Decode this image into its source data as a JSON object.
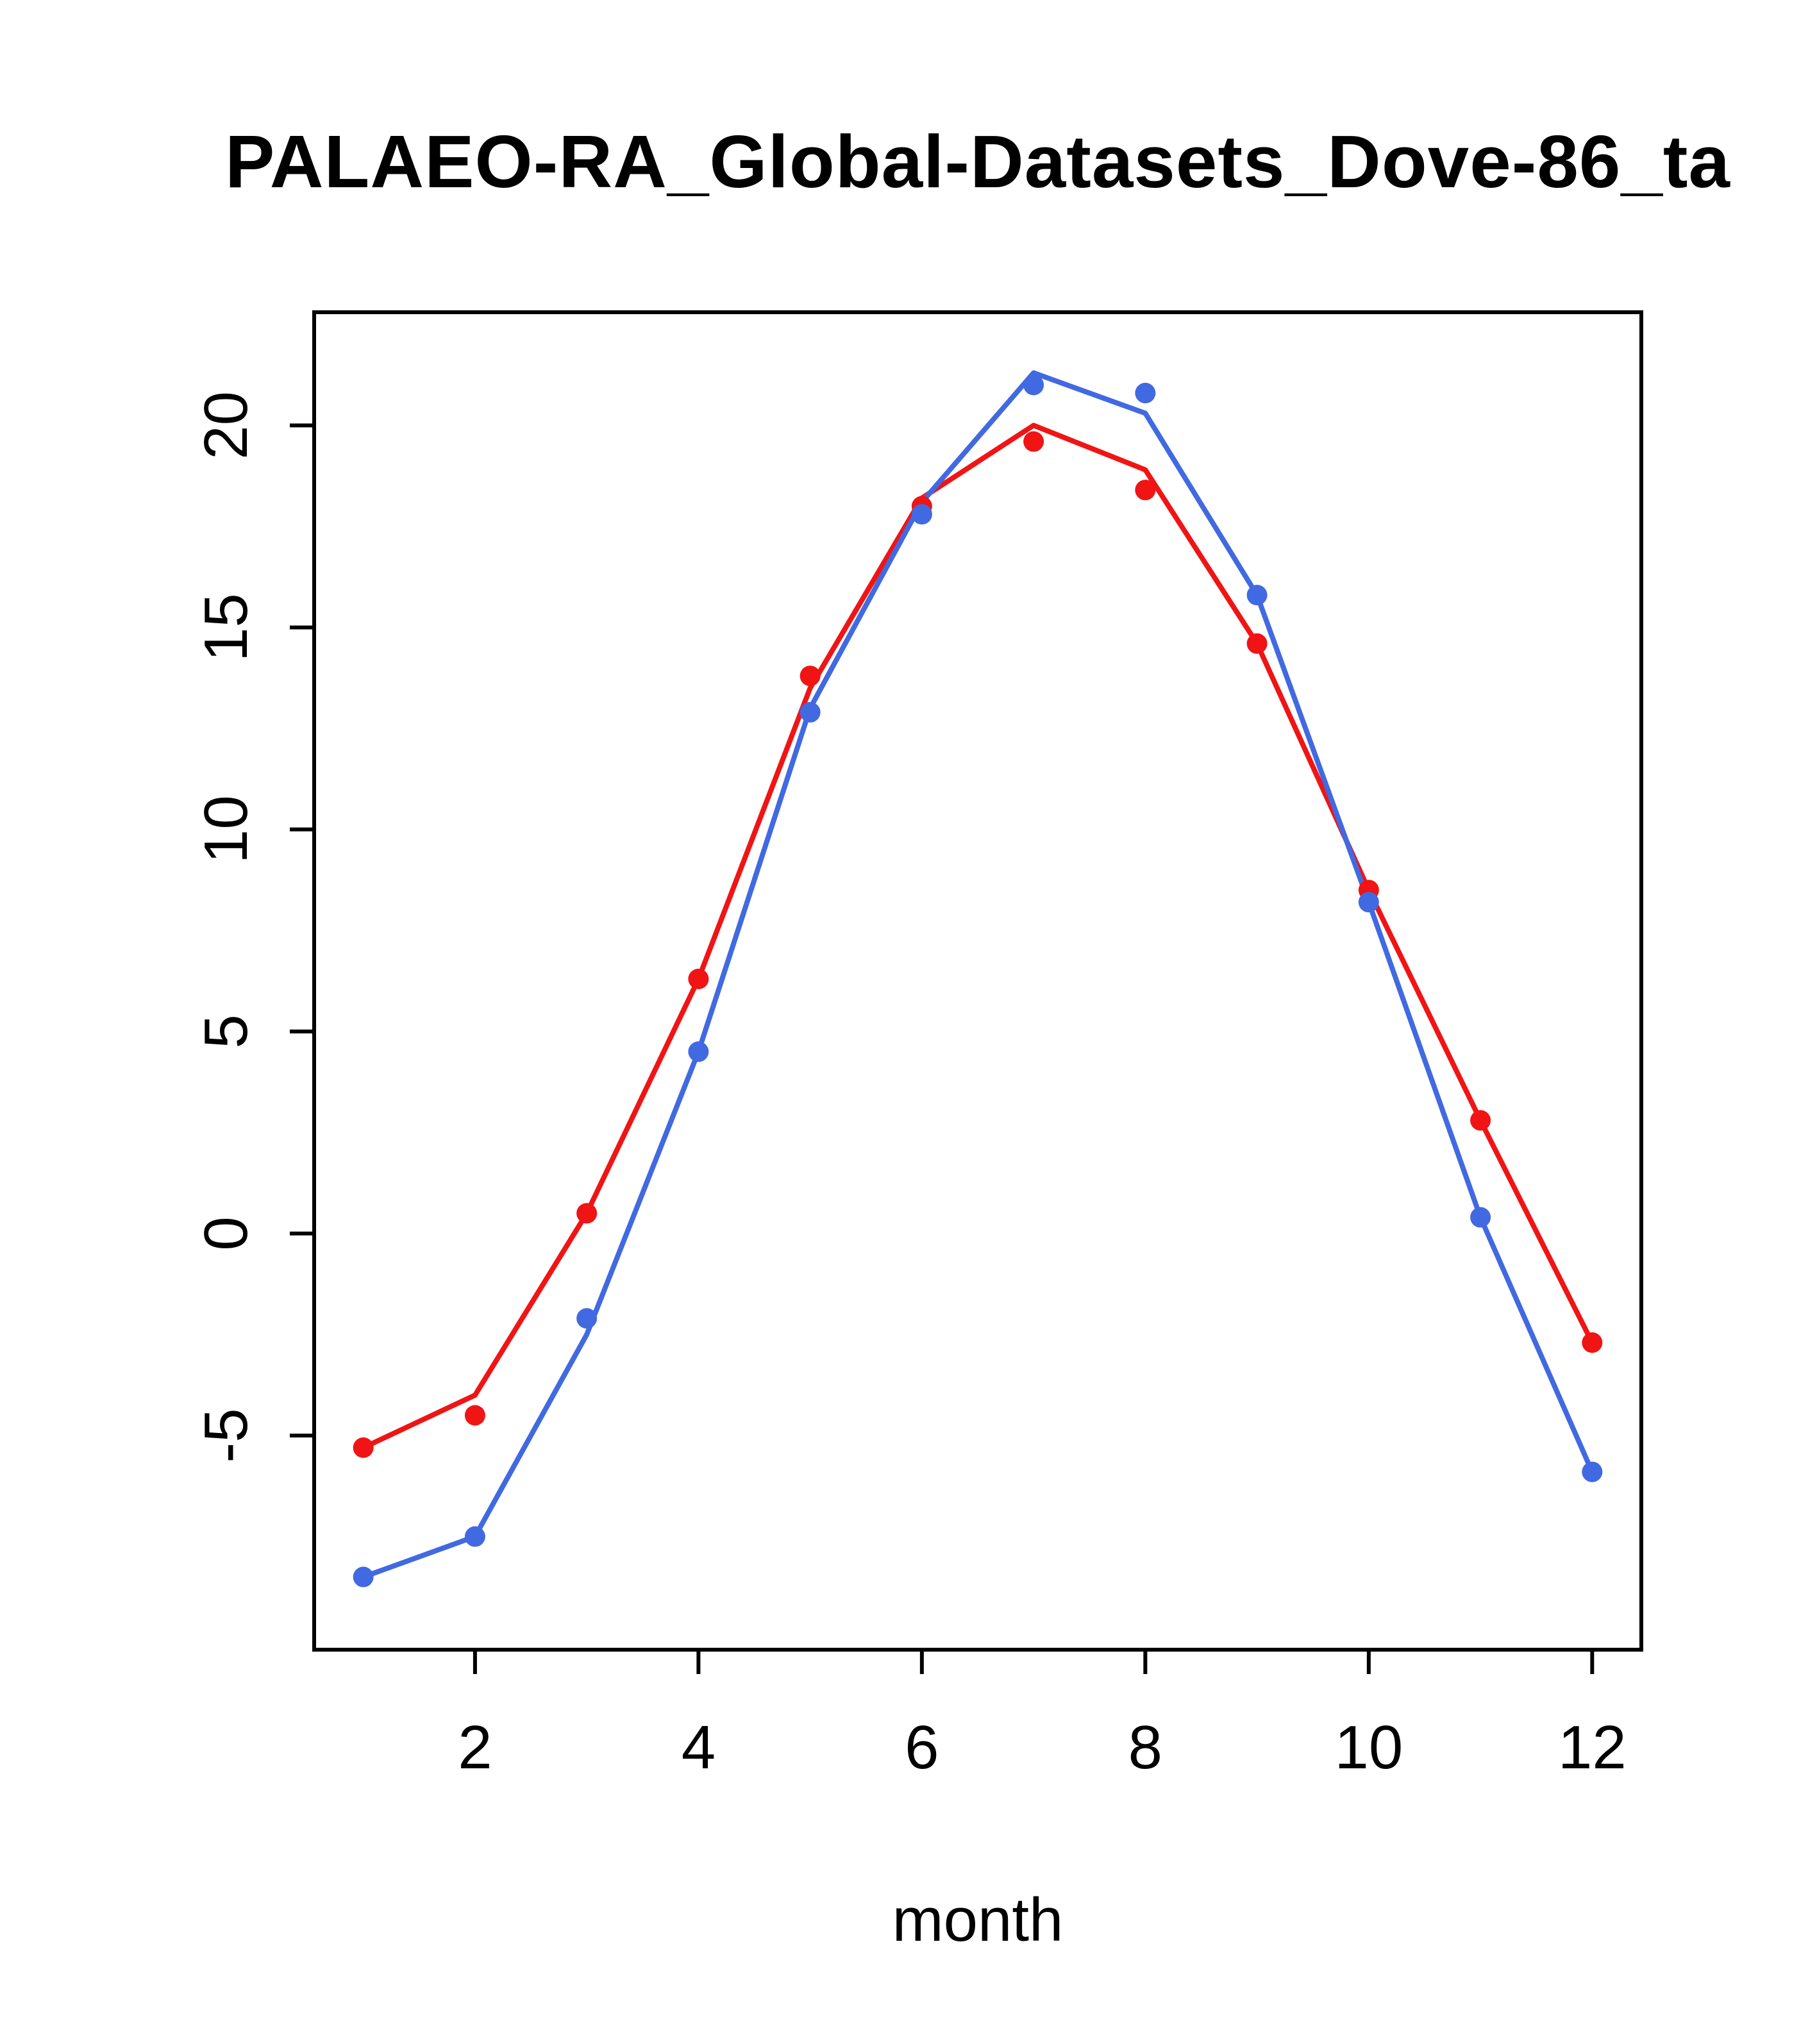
{
  "chart_data": {
    "type": "line",
    "title": "PALAEO-RA_Global-Datasets_Dove-86_ta",
    "xlabel": "month",
    "ylabel": "",
    "x": [
      1,
      2,
      3,
      4,
      5,
      6,
      7,
      8,
      9,
      10,
      11,
      12
    ],
    "xticks": [
      2,
      4,
      6,
      8,
      10,
      12
    ],
    "yticks": [
      -5,
      0,
      5,
      10,
      15,
      20
    ],
    "xlim": [
      0.56,
      12.44
    ],
    "ylim": [
      -10.3,
      22.8
    ],
    "grid": false,
    "legend": "none",
    "series": [
      {
        "name": "red-series",
        "color": "#f01414",
        "line": [
          -5.3,
          -4.0,
          0.5,
          6.3,
          13.5,
          18.2,
          20.0,
          18.9,
          14.6,
          8.5,
          2.8,
          -2.7
        ],
        "points": [
          -5.3,
          -4.5,
          0.5,
          6.3,
          13.8,
          18.0,
          19.6,
          18.4,
          14.6,
          8.5,
          2.8,
          -2.7
        ]
      },
      {
        "name": "blue-series",
        "color": "#4169e1",
        "line": [
          -8.5,
          -7.5,
          -2.5,
          4.5,
          13.0,
          18.1,
          21.3,
          20.3,
          15.8,
          8.2,
          0.4,
          -5.9
        ],
        "points": [
          -8.5,
          -7.5,
          -2.1,
          4.5,
          12.9,
          17.8,
          21.0,
          20.8,
          15.8,
          8.2,
          0.4,
          -5.9
        ]
      }
    ]
  },
  "layout_labels": {
    "title": "PALAEO-RA_Global-Datasets_Dove-86_ta",
    "xlabel": "month"
  }
}
